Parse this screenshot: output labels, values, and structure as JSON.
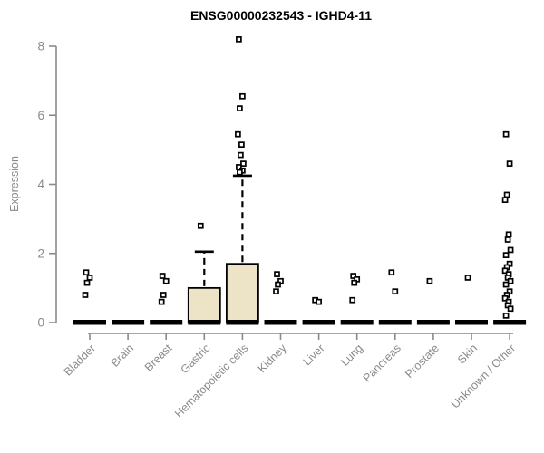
{
  "chart_data": {
    "type": "boxplot",
    "title": "ENSG00000232543 - IGHD4-11",
    "ylabel": "Expression",
    "xlabel": "",
    "ylim": [
      0,
      8
    ],
    "yticks": [
      0,
      2,
      4,
      6,
      8
    ],
    "grid": false,
    "legend": "none",
    "x_tick_rotation_deg": 45,
    "categories": [
      "Bladder",
      "Brain",
      "Breast",
      "Gastric",
      "Hematopoietic cells",
      "Kidney",
      "Liver",
      "Lung",
      "Pancreas",
      "Prostate",
      "Skin",
      "Unknown / Other"
    ],
    "boxes": [
      {
        "category": "Bladder",
        "q1": 0,
        "median": 0,
        "q3": 0,
        "whisker_low": 0,
        "whisker_high": 0,
        "outliers": [
          1.45,
          1.3,
          1.15,
          0.8
        ]
      },
      {
        "category": "Brain",
        "q1": 0,
        "median": 0,
        "q3": 0,
        "whisker_low": 0,
        "whisker_high": 0,
        "outliers": []
      },
      {
        "category": "Breast",
        "q1": 0,
        "median": 0,
        "q3": 0,
        "whisker_low": 0,
        "whisker_high": 0,
        "outliers": [
          1.35,
          1.2,
          0.8,
          0.6
        ]
      },
      {
        "category": "Gastric",
        "q1": 0,
        "median": 0,
        "q3": 1.0,
        "whisker_low": 0,
        "whisker_high": 2.05,
        "outliers": [
          2.8
        ]
      },
      {
        "category": "Hematopoietic cells",
        "q1": 0,
        "median": 0,
        "q3": 1.7,
        "whisker_low": 0,
        "whisker_high": 4.25,
        "outliers": [
          8.2,
          6.55,
          6.2,
          5.45,
          5.15,
          4.85,
          4.6,
          4.5,
          4.4,
          4.35
        ]
      },
      {
        "category": "Kidney",
        "q1": 0,
        "median": 0,
        "q3": 0,
        "whisker_low": 0,
        "whisker_high": 0,
        "outliers": [
          1.4,
          1.2,
          1.1,
          0.9
        ]
      },
      {
        "category": "Liver",
        "q1": 0,
        "median": 0,
        "q3": 0,
        "whisker_low": 0,
        "whisker_high": 0,
        "outliers": [
          0.65,
          0.6
        ]
      },
      {
        "category": "Lung",
        "q1": 0,
        "median": 0,
        "q3": 0,
        "whisker_low": 0,
        "whisker_high": 0,
        "outliers": [
          1.35,
          1.25,
          1.15,
          0.65
        ]
      },
      {
        "category": "Pancreas",
        "q1": 0,
        "median": 0,
        "q3": 0,
        "whisker_low": 0,
        "whisker_high": 0,
        "outliers": [
          1.45,
          0.9
        ]
      },
      {
        "category": "Prostate",
        "q1": 0,
        "median": 0,
        "q3": 0,
        "whisker_low": 0,
        "whisker_high": 0,
        "outliers": [
          1.2
        ]
      },
      {
        "category": "Skin",
        "q1": 0,
        "median": 0,
        "q3": 0,
        "whisker_low": 0,
        "whisker_high": 0,
        "outliers": [
          1.3
        ]
      },
      {
        "category": "Unknown / Other",
        "q1": 0,
        "median": 0,
        "q3": 0,
        "whisker_low": 0,
        "whisker_high": 0,
        "outliers": [
          5.45,
          4.6,
          3.7,
          3.55,
          2.55,
          2.4,
          2.1,
          1.95,
          1.7,
          1.6,
          1.5,
          1.4,
          1.3,
          1.2,
          1.1,
          0.9,
          0.8,
          0.7,
          0.6,
          0.5,
          0.4,
          0.2
        ]
      }
    ],
    "colors": {
      "box_fill": "#ede4c8",
      "box_stroke": "#000000",
      "median": "#000000",
      "outlier_stroke": "#000000",
      "axis": "#8a8a8a",
      "tick_label": "#8a8a8a",
      "title": "#000000"
    }
  }
}
